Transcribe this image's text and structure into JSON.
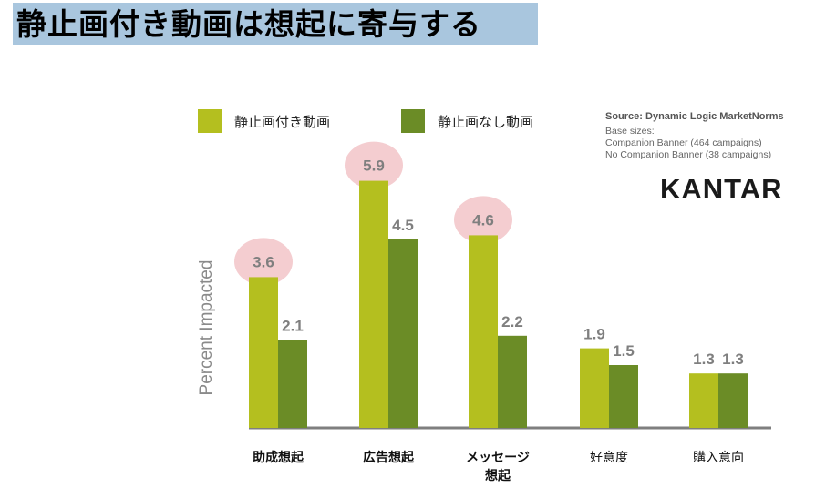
{
  "title": "静止画付き動画は想起に寄与する",
  "colors": {
    "series1": "#b4bf1f",
    "series2": "#6b8c26",
    "highlight": "#f2c4c8",
    "title_band": "#a9c6de",
    "value_label": "#7f7f7f",
    "axis": "#7f7f7f"
  },
  "source": {
    "title": "Source: Dynamic Logic MarketNorms",
    "lines": [
      "Base sizes:",
      "Companion Banner (464 campaigns)",
      "No Companion Banner (38 campaigns)"
    ]
  },
  "brand": "KANTAR",
  "chart_data": {
    "type": "bar",
    "ylabel": "Percent Impacted",
    "ylim": [
      0,
      7
    ],
    "grid": false,
    "legend": "top-left",
    "categories": [
      {
        "label": "助成想起",
        "bold": true
      },
      {
        "label": "広告想起",
        "bold": true
      },
      {
        "lines": [
          "メッセージ",
          "想起"
        ],
        "bold": true
      },
      {
        "label": "好意度",
        "bold": false
      },
      {
        "label": "購入意向",
        "bold": false
      }
    ],
    "series": [
      {
        "name": "静止画付き動画",
        "values": [
          3.6,
          5.9,
          4.6,
          1.9,
          1.3
        ],
        "labels": [
          "3.6",
          "5.9",
          "4.6",
          "1.9",
          "1.3"
        ]
      },
      {
        "name": "静止画なし動画",
        "values": [
          2.1,
          4.5,
          2.2,
          1.5,
          1.3
        ],
        "labels": [
          "2.1",
          "4.5",
          "2.2",
          "1.5",
          "1.3"
        ]
      }
    ],
    "highlighted": [
      0,
      1,
      2
    ]
  }
}
